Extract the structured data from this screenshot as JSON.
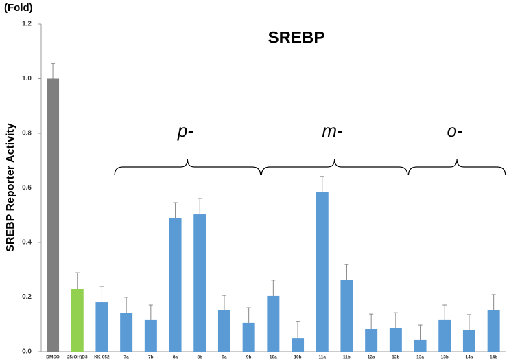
{
  "chart_data": {
    "type": "bar",
    "title": "SREBP",
    "unit_label": "(Fold)",
    "y_label": "SREBP Reporter Activity",
    "categories": [
      "DMSO",
      "25(OH)D3",
      "KK-052",
      "7a",
      "7b",
      "8a",
      "8b",
      "9a",
      "9b",
      "10a",
      "10b",
      "11a",
      "11b",
      "12a",
      "12b",
      "13a",
      "13b",
      "14a",
      "14b"
    ],
    "values": [
      1.0,
      0.231,
      0.181,
      0.143,
      0.116,
      0.488,
      0.503,
      0.151,
      0.106,
      0.204,
      0.05,
      0.586,
      0.262,
      0.083,
      0.086,
      0.043,
      0.116,
      0.078,
      0.153
    ],
    "errors": [
      0.056,
      0.058,
      0.058,
      0.056,
      0.055,
      0.058,
      0.058,
      0.055,
      0.055,
      0.058,
      0.06,
      0.056,
      0.057,
      0.055,
      0.057,
      0.055,
      0.055,
      0.058,
      0.056
    ],
    "colors": [
      "#7f7f7f",
      "#92d050",
      "#5b9bd5",
      "#5b9bd5",
      "#5b9bd5",
      "#5b9bd5",
      "#5b9bd5",
      "#5b9bd5",
      "#5b9bd5",
      "#5b9bd5",
      "#5b9bd5",
      "#5b9bd5",
      "#5b9bd5",
      "#5b9bd5",
      "#5b9bd5",
      "#5b9bd5",
      "#5b9bd5",
      "#5b9bd5",
      "#5b9bd5"
    ],
    "annotations": [
      "p-",
      "m-",
      "o-"
    ],
    "ylim": [
      0,
      1.2
    ],
    "yticks": [
      {
        "value": 0,
        "label": "0.0"
      },
      0.2,
      0.4,
      0.6,
      0.8,
      {
        "value": 1,
        "label": "1.0"
      },
      1.2
    ]
  }
}
